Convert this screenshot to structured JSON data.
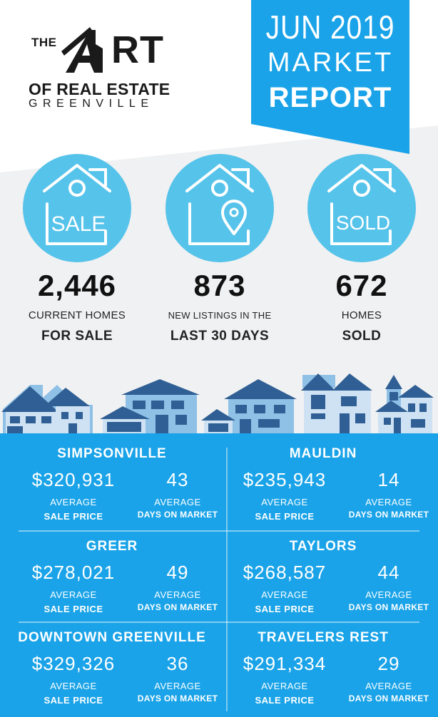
{
  "logo": {
    "line1_the": "THE",
    "line1_rt": "RT",
    "line2": "OF REAL ESTATE",
    "line3": "GREENVILLE"
  },
  "banner": {
    "month_year": "JUN 2019",
    "line2": "MARKET",
    "line3": "REPORT"
  },
  "stats": [
    {
      "icon": "house-sale-icon",
      "icon_text": "SALE",
      "value": "2,446",
      "label1": "CURRENT HOMES",
      "label2": "FOR SALE"
    },
    {
      "icon": "house-location-pin-icon",
      "icon_text": "",
      "value": "873",
      "label1": "NEW LISTINGS IN THE",
      "label2": "LAST 30 DAYS"
    },
    {
      "icon": "house-sold-icon",
      "icon_text": "SOLD",
      "value": "672",
      "label1": "HOMES",
      "label2": "SOLD"
    }
  ],
  "cities": [
    {
      "name": "SIMPSONVILLE",
      "price": "$320,931",
      "price_label1": "AVERAGE",
      "price_label2": "SALE PRICE",
      "days": "43",
      "days_label1": "AVERAGE",
      "days_label2": "DAYS ON MARKET"
    },
    {
      "name": "MAULDIN",
      "price": "$235,943",
      "price_label1": "AVERAGE",
      "price_label2": "SALE PRICE",
      "days": "14",
      "days_label1": "AVERAGE",
      "days_label2": "DAYS ON MARKET"
    },
    {
      "name": "GREER",
      "price": "$278,021",
      "price_label1": "AVERAGE",
      "price_label2": "SALE PRICE",
      "days": "49",
      "days_label1": "AVERAGE",
      "days_label2": "DAYS ON MARKET"
    },
    {
      "name": "TAYLORS",
      "price": "$268,587",
      "price_label1": "AVERAGE",
      "price_label2": "SALE PRICE",
      "days": "44",
      "days_label1": "AVERAGE",
      "days_label2": "DAYS ON MARKET"
    },
    {
      "name": "DOWNTOWN GREENVILLE",
      "price": "$329,326",
      "price_label1": "AVERAGE",
      "price_label2": "SALE PRICE",
      "days": "36",
      "days_label1": "AVERAGE",
      "days_label2": "DAYS ON MARKET"
    },
    {
      "name": "TRAVELERS REST",
      "price": "$291,334",
      "price_label1": "AVERAGE",
      "price_label2": "SALE PRICE",
      "days": "29",
      "days_label1": "AVERAGE",
      "days_label2": "DAYS ON MARKET"
    }
  ],
  "colors": {
    "accent": "#1aa3e8",
    "circle": "#56c3ea",
    "dark_text": "#111111",
    "grey_band": "#f0f1f2",
    "house_dark": "#2f5f94",
    "house_light": "#8fc0e6"
  }
}
